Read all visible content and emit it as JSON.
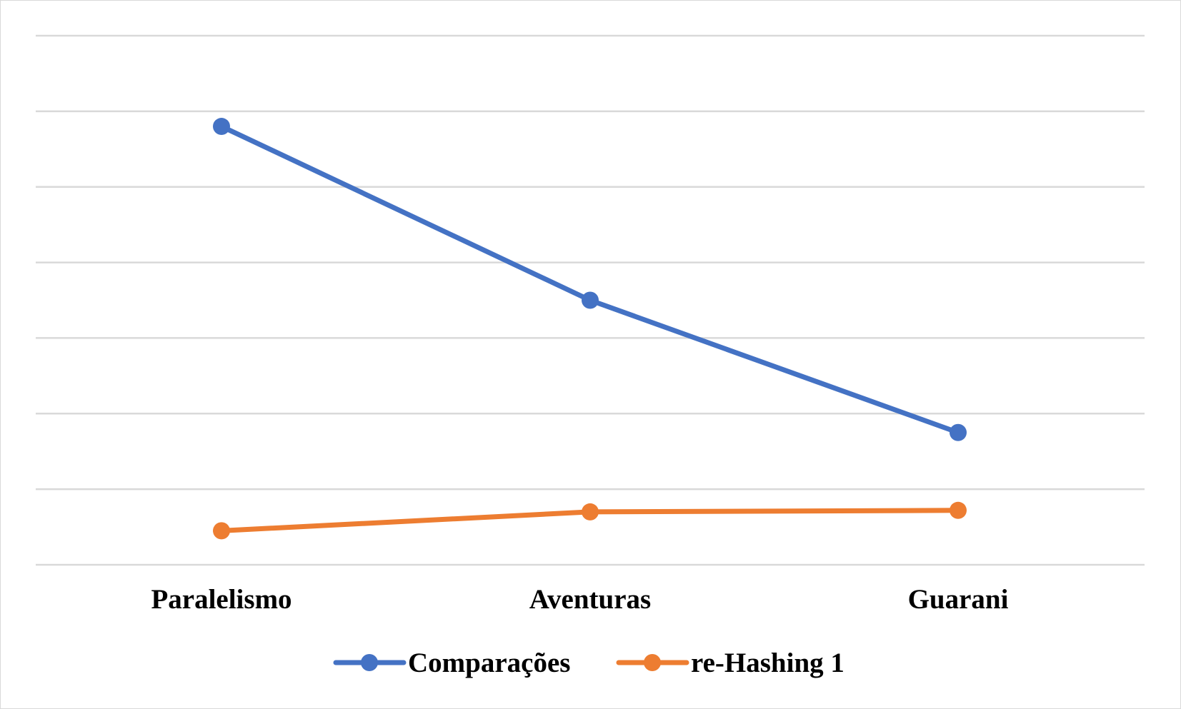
{
  "chart_data": {
    "type": "line",
    "title": "",
    "xlabel": "",
    "ylabel": "",
    "categories": [
      "Paralelismo",
      "Aventuras",
      "Guarani"
    ],
    "series": [
      {
        "name": "Comparações",
        "color": "#4472c4",
        "values": [
          5.8,
          3.5,
          1.75
        ]
      },
      {
        "name": "re-Hashing 1",
        "color": "#ed7d31",
        "values": [
          0.45,
          0.7,
          0.72
        ]
      }
    ],
    "ylim": [
      0,
      7
    ],
    "y_gridlines": [
      0,
      1,
      2,
      3,
      4,
      5,
      6,
      7
    ],
    "grid": true,
    "y_tick_labels_visible": false,
    "legend_position": "bottom",
    "markers": "circle"
  }
}
